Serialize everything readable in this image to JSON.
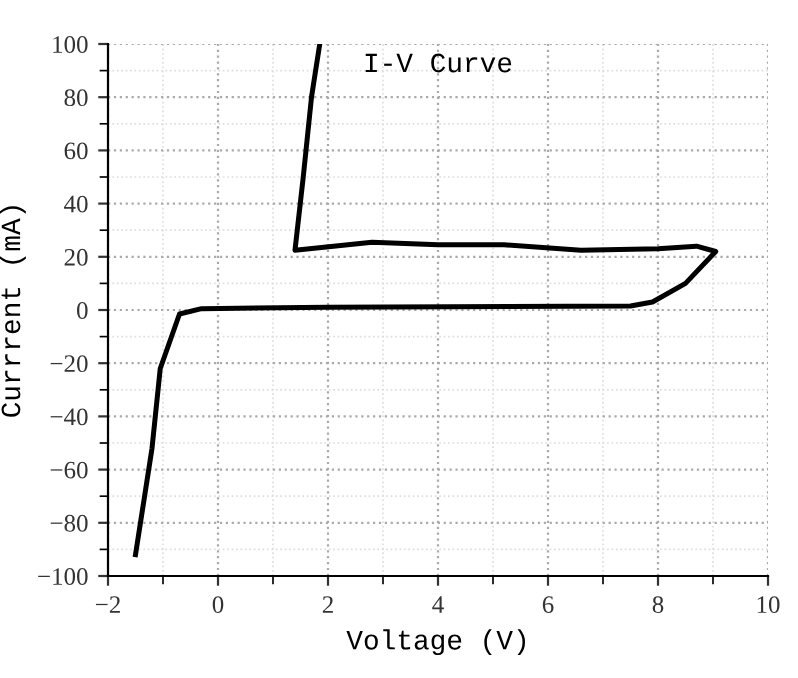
{
  "chart_data": {
    "type": "line",
    "title": "I-V Curve",
    "xlabel": "Voltage (V)",
    "ylabel": "Currrent (mA)",
    "series": [
      {
        "color": "#000000",
        "x": [
          -1.5,
          -1.35,
          -1.2,
          -1.05,
          -0.7,
          -0.3,
          2,
          7.5,
          7.9,
          8.5,
          9.05,
          8.7,
          8,
          6.6,
          5.2,
          4,
          2.8,
          1.4,
          1.55,
          1.7,
          1.85
        ],
        "values": [
          -92,
          -72,
          -52,
          -22,
          -1.5,
          0.5,
          1,
          1.5,
          3,
          10,
          22,
          24,
          23,
          22.5,
          24.5,
          24.5,
          25.5,
          22.5,
          50,
          80,
          100
        ]
      }
    ],
    "xlim": [
      -2,
      10
    ],
    "xticks": [
      {
        "value": -2,
        "label": "−2"
      },
      0,
      2,
      4,
      6,
      8,
      10
    ],
    "ylim": [
      -100,
      100
    ],
    "yticks": [
      {
        "value": -100,
        "label": "−100"
      },
      {
        "value": -80,
        "label": "−80"
      },
      {
        "value": -60,
        "label": "−60"
      },
      {
        "value": -40,
        "label": "−40"
      },
      {
        "value": -20,
        "label": "−20"
      },
      0,
      20,
      40,
      60,
      80,
      100
    ],
    "grid": true,
    "marker": "none",
    "line_style": "solid"
  }
}
